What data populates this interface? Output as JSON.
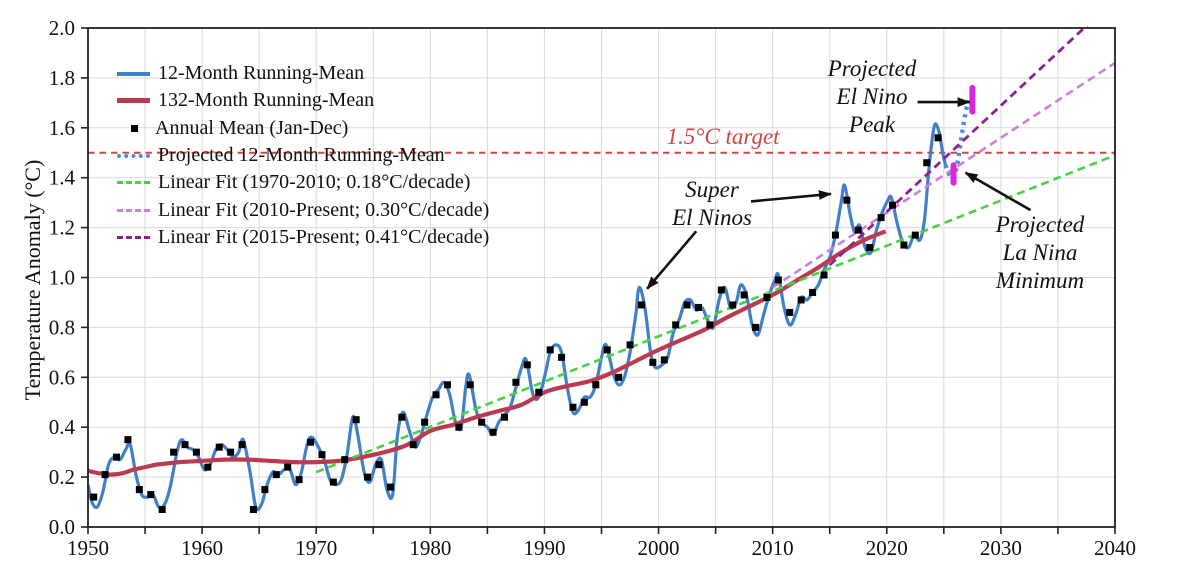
{
  "axes": {
    "ylabel": "Temperature Anomaly (°C)",
    "xlim": [
      1950,
      2040
    ],
    "ylim": [
      0.0,
      2.0
    ],
    "xticks_labeled": [
      1950,
      1960,
      1970,
      1980,
      1990,
      2000,
      2010,
      2020,
      2030,
      2040
    ],
    "xtick_minor_step": 5,
    "yticks": [
      0.0,
      0.2,
      0.4,
      0.6,
      0.8,
      1.0,
      1.2,
      1.4,
      1.6,
      1.8,
      2.0
    ],
    "grid_color": "#d9d9d9",
    "axis_color": "#222222"
  },
  "legend": {
    "items": [
      {
        "label": "12-Month Running-Mean",
        "color": "#4080c8",
        "style": "solid"
      },
      {
        "label": "132-Month Running-Mean",
        "color": "#bc3a50",
        "style": "solid"
      },
      {
        "label": "Annual Mean (Jan-Dec)",
        "color": "#000000",
        "style": "square"
      },
      {
        "label": "Projected 12-Month Running-Mean",
        "color": "#4d8ad4",
        "style": "dotted"
      },
      {
        "label": "Linear Fit (1970-2010; 0.18°C/decade)",
        "color": "#47d147",
        "style": "dashed"
      },
      {
        "label": "Linear Fit (2010-Present; 0.30°C/decade)",
        "color": "#cd80d8",
        "style": "dashed"
      },
      {
        "label": "Linear Fit (2015-Present; 0.41°C/decade)",
        "color": "#8b2290",
        "style": "dashed"
      }
    ]
  },
  "annotations": {
    "el_nino_peak": {
      "lines": [
        "Projected",
        "El Nino",
        "Peak"
      ]
    },
    "la_nina_minimum": {
      "lines": [
        "Projected",
        "La Nina",
        "Minimum"
      ]
    },
    "super_el_ninos": {
      "lines": [
        "Super",
        "El Ninos"
      ]
    },
    "target_label": "1.5°C target"
  },
  "chart_data": {
    "type": "line",
    "title": "",
    "xlabel": "",
    "ylabel": "Temperature Anomaly (°C)",
    "xlim": [
      1950,
      2040
    ],
    "ylim": [
      0.0,
      2.0
    ],
    "grid": true,
    "legend_position": "top-left",
    "target_line": {
      "value": 1.5,
      "color": "#d04545",
      "label": "1.5°C target"
    },
    "series": [
      {
        "name": "12-Month Running-Mean",
        "color": "#4080c8",
        "style": "solid",
        "width": 3.2,
        "smooth": true,
        "points": [
          [
            1950.0,
            0.17
          ],
          [
            1950.35,
            0.1
          ],
          [
            1950.8,
            0.08
          ],
          [
            1951.3,
            0.14
          ],
          [
            1951.8,
            0.25
          ],
          [
            1952.3,
            0.28
          ],
          [
            1952.8,
            0.27
          ],
          [
            1953.3,
            0.31
          ],
          [
            1953.7,
            0.33
          ],
          [
            1954.2,
            0.21
          ],
          [
            1954.7,
            0.13
          ],
          [
            1955.2,
            0.12
          ],
          [
            1955.7,
            0.13
          ],
          [
            1956.2,
            0.08
          ],
          [
            1956.7,
            0.09
          ],
          [
            1957.2,
            0.16
          ],
          [
            1957.8,
            0.3
          ],
          [
            1958.2,
            0.35
          ],
          [
            1958.7,
            0.32
          ],
          [
            1959.2,
            0.31
          ],
          [
            1959.7,
            0.28
          ],
          [
            1960.2,
            0.23
          ],
          [
            1960.7,
            0.25
          ],
          [
            1961.2,
            0.31
          ],
          [
            1961.7,
            0.33
          ],
          [
            1962.2,
            0.31
          ],
          [
            1962.7,
            0.28
          ],
          [
            1963.2,
            0.3
          ],
          [
            1963.6,
            0.35
          ],
          [
            1964.2,
            0.22
          ],
          [
            1964.7,
            0.08
          ],
          [
            1965.2,
            0.09
          ],
          [
            1965.7,
            0.17
          ],
          [
            1966.2,
            0.22
          ],
          [
            1966.7,
            0.21
          ],
          [
            1967.2,
            0.23
          ],
          [
            1967.7,
            0.23
          ],
          [
            1968.2,
            0.17
          ],
          [
            1968.7,
            0.22
          ],
          [
            1969.2,
            0.33
          ],
          [
            1969.6,
            0.36
          ],
          [
            1970.2,
            0.32
          ],
          [
            1970.7,
            0.27
          ],
          [
            1971.2,
            0.19
          ],
          [
            1971.7,
            0.17
          ],
          [
            1972.2,
            0.19
          ],
          [
            1972.7,
            0.29
          ],
          [
            1973.2,
            0.44
          ],
          [
            1973.6,
            0.38
          ],
          [
            1974.2,
            0.22
          ],
          [
            1974.7,
            0.18
          ],
          [
            1975.2,
            0.25
          ],
          [
            1975.7,
            0.27
          ],
          [
            1976.2,
            0.15
          ],
          [
            1976.7,
            0.13
          ],
          [
            1977.1,
            0.36
          ],
          [
            1977.6,
            0.46
          ],
          [
            1978.2,
            0.38
          ],
          [
            1978.7,
            0.32
          ],
          [
            1979.2,
            0.37
          ],
          [
            1979.7,
            0.45
          ],
          [
            1980.2,
            0.52
          ],
          [
            1980.7,
            0.55
          ],
          [
            1981.2,
            0.58
          ],
          [
            1981.7,
            0.53
          ],
          [
            1982.2,
            0.42
          ],
          [
            1982.7,
            0.4
          ],
          [
            1983.1,
            0.56
          ],
          [
            1983.4,
            0.61
          ],
          [
            1984.0,
            0.47
          ],
          [
            1984.5,
            0.42
          ],
          [
            1985.0,
            0.4
          ],
          [
            1985.5,
            0.37
          ],
          [
            1986.0,
            0.42
          ],
          [
            1986.5,
            0.45
          ],
          [
            1987.0,
            0.48
          ],
          [
            1987.5,
            0.56
          ],
          [
            1988.0,
            0.64
          ],
          [
            1988.4,
            0.67
          ],
          [
            1989.0,
            0.53
          ],
          [
            1989.5,
            0.52
          ],
          [
            1990.0,
            0.6
          ],
          [
            1990.5,
            0.7
          ],
          [
            1991.0,
            0.73
          ],
          [
            1991.5,
            0.7
          ],
          [
            1992.0,
            0.56
          ],
          [
            1992.5,
            0.46
          ],
          [
            1993.0,
            0.47
          ],
          [
            1993.5,
            0.52
          ],
          [
            1994.0,
            0.52
          ],
          [
            1994.5,
            0.57
          ],
          [
            1995.0,
            0.68
          ],
          [
            1995.4,
            0.73
          ],
          [
            1996.0,
            0.62
          ],
          [
            1996.5,
            0.57
          ],
          [
            1997.0,
            0.6
          ],
          [
            1997.5,
            0.7
          ],
          [
            1998.0,
            0.85
          ],
          [
            1998.3,
            0.96
          ],
          [
            1998.8,
            0.88
          ],
          [
            1999.3,
            0.7
          ],
          [
            1999.7,
            0.64
          ],
          [
            2000.3,
            0.65
          ],
          [
            2000.8,
            0.68
          ],
          [
            2001.3,
            0.78
          ],
          [
            2001.8,
            0.83
          ],
          [
            2002.3,
            0.9
          ],
          [
            2002.8,
            0.91
          ],
          [
            2003.3,
            0.87
          ],
          [
            2003.8,
            0.88
          ],
          [
            2004.3,
            0.83
          ],
          [
            2004.8,
            0.8
          ],
          [
            2005.3,
            0.91
          ],
          [
            2005.8,
            0.96
          ],
          [
            2006.3,
            0.88
          ],
          [
            2006.8,
            0.9
          ],
          [
            2007.2,
            0.97
          ],
          [
            2007.7,
            0.93
          ],
          [
            2008.2,
            0.81
          ],
          [
            2008.7,
            0.77
          ],
          [
            2009.2,
            0.85
          ],
          [
            2009.7,
            0.93
          ],
          [
            2010.2,
            0.99
          ],
          [
            2010.5,
            1.01
          ],
          [
            2011.0,
            0.88
          ],
          [
            2011.5,
            0.81
          ],
          [
            2012.0,
            0.85
          ],
          [
            2012.5,
            0.92
          ],
          [
            2013.0,
            0.91
          ],
          [
            2013.5,
            0.94
          ],
          [
            2014.0,
            0.97
          ],
          [
            2014.5,
            1.03
          ],
          [
            2015.0,
            1.08
          ],
          [
            2015.5,
            1.17
          ],
          [
            2016.0,
            1.3
          ],
          [
            2016.3,
            1.37
          ],
          [
            2016.8,
            1.25
          ],
          [
            2017.2,
            1.18
          ],
          [
            2017.6,
            1.21
          ],
          [
            2018.1,
            1.12
          ],
          [
            2018.6,
            1.1
          ],
          [
            2019.1,
            1.19
          ],
          [
            2019.6,
            1.26
          ],
          [
            2020.1,
            1.31
          ],
          [
            2020.4,
            1.32
          ],
          [
            2020.9,
            1.22
          ],
          [
            2021.4,
            1.14
          ],
          [
            2021.9,
            1.12
          ],
          [
            2022.4,
            1.17
          ],
          [
            2022.9,
            1.15
          ],
          [
            2023.3,
            1.23
          ],
          [
            2023.7,
            1.44
          ],
          [
            2024.0,
            1.56
          ],
          [
            2024.25,
            1.615
          ],
          [
            2024.6,
            1.58
          ],
          [
            2024.9,
            1.5
          ],
          [
            2025.15,
            1.45
          ]
        ]
      },
      {
        "name": "132-Month Running-Mean",
        "color": "#bc3a50",
        "style": "solid",
        "width": 4.2,
        "smooth": true,
        "points": [
          [
            1950.0,
            0.225
          ],
          [
            1951,
            0.215
          ],
          [
            1952,
            0.21
          ],
          [
            1953,
            0.215
          ],
          [
            1954,
            0.23
          ],
          [
            1955,
            0.24
          ],
          [
            1956,
            0.25
          ],
          [
            1957,
            0.255
          ],
          [
            1958,
            0.26
          ],
          [
            1960,
            0.265
          ],
          [
            1962,
            0.27
          ],
          [
            1964,
            0.27
          ],
          [
            1966,
            0.265
          ],
          [
            1968,
            0.26
          ],
          [
            1970,
            0.26
          ],
          [
            1972,
            0.265
          ],
          [
            1974,
            0.28
          ],
          [
            1976,
            0.3
          ],
          [
            1978,
            0.33
          ],
          [
            1980,
            0.385
          ],
          [
            1982,
            0.41
          ],
          [
            1984,
            0.44
          ],
          [
            1986,
            0.465
          ],
          [
            1988,
            0.49
          ],
          [
            1990,
            0.54
          ],
          [
            1992,
            0.565
          ],
          [
            1994,
            0.585
          ],
          [
            1996,
            0.62
          ],
          [
            1998,
            0.665
          ],
          [
            2000,
            0.71
          ],
          [
            2002,
            0.75
          ],
          [
            2004,
            0.79
          ],
          [
            2006,
            0.84
          ],
          [
            2008,
            0.885
          ],
          [
            2010,
            0.93
          ],
          [
            2012,
            0.985
          ],
          [
            2014,
            1.04
          ],
          [
            2016,
            1.1
          ],
          [
            2018,
            1.15
          ],
          [
            2019.9,
            1.185
          ]
        ]
      },
      {
        "name": "Projected 12-Month Running-Mean",
        "color": "#4d8ad4",
        "style": "dotted",
        "width": 4.4,
        "smooth": true,
        "points": [
          [
            2025.15,
            1.45
          ],
          [
            2025.5,
            1.41
          ],
          [
            2025.85,
            1.4
          ],
          [
            2026.2,
            1.46
          ],
          [
            2026.6,
            1.58
          ],
          [
            2026.95,
            1.67
          ],
          [
            2027.2,
            1.71
          ]
        ]
      },
      {
        "name": "Linear Fit (1970-2010; 0.18°C/decade)",
        "color": "#47d147",
        "style": "dashed",
        "width": 2.6,
        "smooth": false,
        "points": [
          [
            1970,
            0.22
          ],
          [
            2040,
            1.49
          ]
        ]
      },
      {
        "name": "Linear Fit (2010-Present; 0.30°C/decade)",
        "color": "#cd80d8",
        "style": "dashed",
        "width": 2.6,
        "smooth": false,
        "points": [
          [
            2010,
            0.96
          ],
          [
            2040,
            1.86
          ]
        ]
      },
      {
        "name": "Linear Fit (2015-Present; 0.41°C/decade)",
        "color": "#8b2290",
        "style": "dashed",
        "width": 2.8,
        "smooth": false,
        "points": [
          [
            2015,
            1.05
          ],
          [
            2038,
            2.03
          ]
        ]
      }
    ],
    "annual_mean": {
      "name": "Annual Mean (Jan-Dec)",
      "color": "#000000",
      "marker": "square",
      "marker_size": 7,
      "start_year": 1950,
      "values": [
        0.12,
        0.21,
        0.28,
        0.35,
        0.15,
        0.13,
        0.07,
        0.3,
        0.33,
        0.3,
        0.24,
        0.32,
        0.3,
        0.33,
        0.07,
        0.15,
        0.21,
        0.24,
        0.19,
        0.34,
        0.29,
        0.18,
        0.27,
        0.43,
        0.2,
        0.25,
        0.16,
        0.44,
        0.33,
        0.42,
        0.53,
        0.57,
        0.4,
        0.57,
        0.42,
        0.38,
        0.44,
        0.58,
        0.65,
        0.54,
        0.71,
        0.68,
        0.48,
        0.5,
        0.57,
        0.71,
        0.6,
        0.73,
        0.89,
        0.66,
        0.67,
        0.81,
        0.89,
        0.88,
        0.81,
        0.95,
        0.89,
        0.93,
        0.8,
        0.92,
        0.99,
        0.86,
        0.91,
        0.94,
        1.01,
        1.17,
        1.31,
        1.19,
        1.12,
        1.24,
        1.29,
        1.13,
        1.17,
        1.46,
        1.56
      ]
    },
    "projection_bars": [
      {
        "name": "projected-el-nino-peak",
        "year": 2027.5,
        "from": 1.665,
        "to": 1.76,
        "color": "#d926e0"
      },
      {
        "name": "projected-la-nina-minimum",
        "year": 2025.85,
        "from": 1.38,
        "to": 1.45,
        "color": "#d926e0"
      }
    ],
    "arrows": [
      {
        "name": "arrow-el-nino-peak",
        "from": [
          2022.7,
          1.703
        ],
        "to": [
          2027.25,
          1.703
        ]
      },
      {
        "name": "arrow-la-nina-minimum",
        "from": [
          2032.6,
          1.27
        ],
        "to": [
          2026.9,
          1.42
        ]
      },
      {
        "name": "arrow-super-2016",
        "from": [
          2008.1,
          1.305
        ],
        "to": [
          2015.1,
          1.335
        ]
      },
      {
        "name": "arrow-super-1998",
        "from": [
          2003.3,
          1.185
        ],
        "to": [
          1999.0,
          0.955
        ]
      }
    ]
  }
}
